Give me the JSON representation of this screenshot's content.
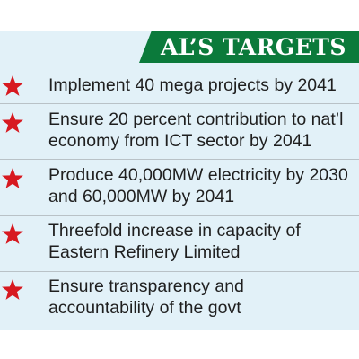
{
  "header": {
    "title": "AL’S TARGETS",
    "accent_color": "#0b7a3b"
  },
  "panel_color": "#e2f1f8",
  "star_color": "#d71920",
  "items": [
    {
      "icon": "star-icon",
      "lines": [
        "Implement 40 mega projects by 2041"
      ]
    },
    {
      "icon": "star-icon",
      "lines": [
        "Ensure 20 percent contribution to nat’l",
        "economy from ICT sector by 2041"
      ]
    },
    {
      "icon": "star-icon",
      "lines": [
        "Produce 40,000MW electricity by 2030",
        "and 60,000MW by 2041"
      ]
    },
    {
      "icon": "star-icon",
      "lines": [
        "Threefold increase in capacity of",
        "Eastern Refinery Limited"
      ]
    },
    {
      "icon": "star-icon",
      "lines": [
        "Ensure transparency and",
        "accountability of the govt"
      ]
    }
  ]
}
